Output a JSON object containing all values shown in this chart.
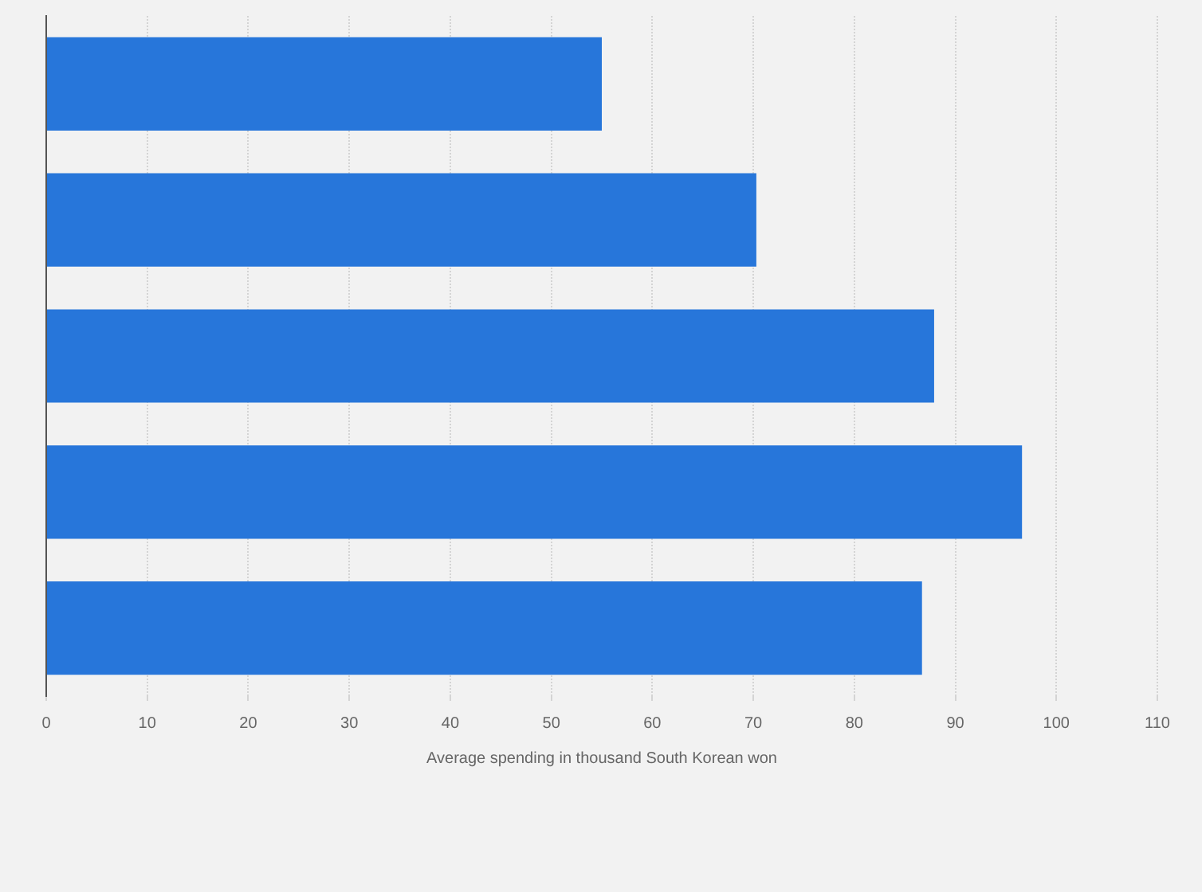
{
  "chart_data": {
    "type": "bar",
    "orientation": "horizontal",
    "categories": [
      null,
      null,
      null,
      null,
      null
    ],
    "values": [
      55,
      70.3,
      87.9,
      96.6,
      86.7
    ],
    "color": "#2776da",
    "xlabel": "Average spending in thousand South Korean won",
    "xlim": [
      0,
      110
    ],
    "xticks": [
      0,
      10,
      20,
      30,
      40,
      50,
      60,
      70,
      80,
      90,
      100,
      110
    ],
    "grid": "x",
    "tick_labels": "x"
  }
}
